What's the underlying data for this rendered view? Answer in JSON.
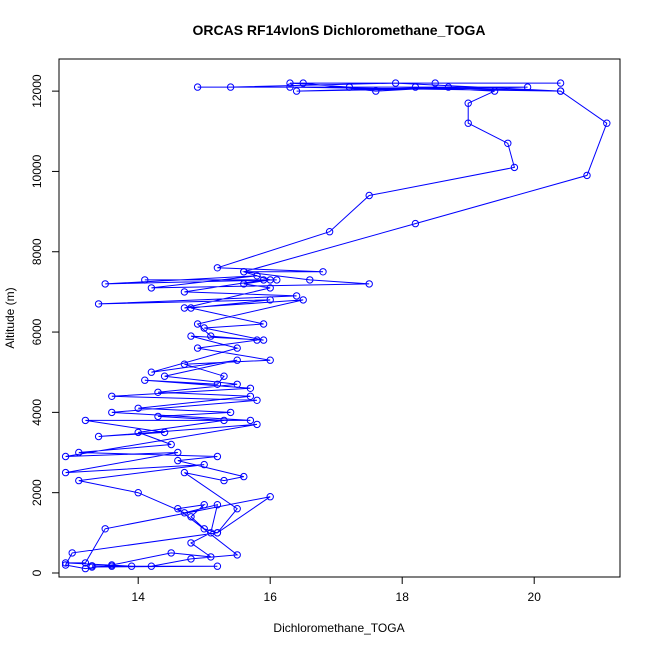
{
  "chart_data": {
    "type": "line",
    "title": "ORCAS RF14vlonS Dichloromethane_TOGA",
    "xlabel": "Dichloromethane_TOGA",
    "ylabel": "Altitude (m)",
    "xlim": [
      12.8,
      21.3
    ],
    "ylim": [
      -100,
      12800
    ],
    "x_ticks": [
      14,
      16,
      18,
      20
    ],
    "x_tick_labels": [
      "14",
      "16",
      "18",
      "20"
    ],
    "y_ticks": [
      0,
      2000,
      4000,
      6000,
      8000,
      10000,
      12000
    ],
    "y_tick_labels": [
      "0",
      "2000",
      "4000",
      "6000",
      "8000",
      "10000",
      "12000"
    ],
    "series_color": "#0000ff",
    "marker": "open-circle",
    "grid": false,
    "points": [
      [
        13.3,
        180
      ],
      [
        13.6,
        170
      ],
      [
        14.2,
        170
      ],
      [
        14.8,
        350
      ],
      [
        15.5,
        450
      ],
      [
        14.6,
        1600
      ],
      [
        15.0,
        1700
      ],
      [
        14.8,
        1400
      ],
      [
        15.0,
        1100
      ],
      [
        15.2,
        1000
      ],
      [
        15.5,
        1600
      ],
      [
        14.7,
        2500
      ],
      [
        15.3,
        2300
      ],
      [
        15.6,
        2400
      ],
      [
        14.6,
        2800
      ],
      [
        15.2,
        2900
      ],
      [
        13.1,
        3000
      ],
      [
        14.5,
        3200
      ],
      [
        14.0,
        3500
      ],
      [
        15.3,
        3800
      ],
      [
        14.3,
        3900
      ],
      [
        15.4,
        4000
      ],
      [
        14.0,
        4100
      ],
      [
        15.7,
        4400
      ],
      [
        14.3,
        4500
      ],
      [
        15.5,
        4700
      ],
      [
        14.4,
        4900
      ],
      [
        15.5,
        5300
      ],
      [
        14.2,
        5000
      ],
      [
        15.5,
        5600
      ],
      [
        14.8,
        5900
      ],
      [
        15.9,
        5800
      ],
      [
        15.0,
        6100
      ],
      [
        15.9,
        6200
      ],
      [
        14.8,
        6600
      ],
      [
        16.0,
        6800
      ],
      [
        13.4,
        6700
      ],
      [
        16.4,
        6900
      ],
      [
        14.7,
        7000
      ],
      [
        15.9,
        7300
      ],
      [
        14.1,
        7300
      ],
      [
        16.1,
        7300
      ],
      [
        13.5,
        7200
      ],
      [
        15.8,
        7400
      ],
      [
        14.2,
        7100
      ],
      [
        17.5,
        7200
      ],
      [
        16.6,
        7300
      ],
      [
        15.6,
        7500
      ],
      [
        16.8,
        7500
      ],
      [
        15.2,
        7600
      ],
      [
        16.9,
        8500
      ],
      [
        17.5,
        9400
      ],
      [
        19.7,
        10100
      ],
      [
        19.6,
        10700
      ],
      [
        19.0,
        11200
      ],
      [
        19.0,
        11700
      ],
      [
        19.4,
        12000
      ],
      [
        18.2,
        12100
      ],
      [
        20.4,
        12000
      ],
      [
        16.3,
        12100
      ],
      [
        14.9,
        12100
      ],
      [
        17.2,
        12100
      ],
      [
        16.3,
        12200
      ],
      [
        18.5,
        12200
      ],
      [
        20.4,
        12200
      ],
      [
        16.5,
        12200
      ],
      [
        17.6,
        12000
      ],
      [
        18.7,
        12100
      ],
      [
        16.4,
        12000
      ],
      [
        19.9,
        12100
      ],
      [
        15.4,
        12100
      ],
      [
        17.9,
        12200
      ],
      [
        20.4,
        12000
      ],
      [
        21.1,
        11200
      ],
      [
        20.8,
        9900
      ],
      [
        18.2,
        8700
      ],
      [
        15.6,
        7500
      ],
      [
        16.0,
        7300
      ],
      [
        15.6,
        7200
      ],
      [
        16.0,
        7100
      ],
      [
        14.7,
        6600
      ],
      [
        16.5,
        6800
      ],
      [
        14.9,
        6200
      ],
      [
        15.1,
        5900
      ],
      [
        15.8,
        5800
      ],
      [
        14.9,
        5600
      ],
      [
        16.0,
        5300
      ],
      [
        14.7,
        5200
      ],
      [
        15.3,
        4900
      ],
      [
        15.2,
        4700
      ],
      [
        14.1,
        4800
      ],
      [
        15.7,
        4600
      ],
      [
        13.6,
        4400
      ],
      [
        15.8,
        4300
      ],
      [
        13.6,
        4000
      ],
      [
        15.7,
        3800
      ],
      [
        13.2,
        3800
      ],
      [
        14.4,
        3500
      ],
      [
        13.4,
        3400
      ],
      [
        15.8,
        3700
      ],
      [
        12.9,
        2900
      ],
      [
        14.6,
        3000
      ],
      [
        12.9,
        2500
      ],
      [
        15.0,
        2700
      ],
      [
        13.1,
        2300
      ],
      [
        14.0,
        2000
      ],
      [
        14.7,
        1500
      ],
      [
        15.2,
        1700
      ],
      [
        15.1,
        1000
      ],
      [
        14.8,
        750
      ],
      [
        15.1,
        400
      ],
      [
        14.5,
        500
      ],
      [
        13.6,
        200
      ],
      [
        13.2,
        110
      ],
      [
        12.9,
        200
      ],
      [
        13.0,
        500
      ],
      [
        15.2,
        1000
      ],
      [
        16.0,
        1900
      ],
      [
        13.5,
        1100
      ],
      [
        13.2,
        250
      ],
      [
        12.9,
        250
      ],
      [
        13.9,
        170
      ],
      [
        15.2,
        170
      ],
      [
        13.3,
        150
      ]
    ]
  }
}
